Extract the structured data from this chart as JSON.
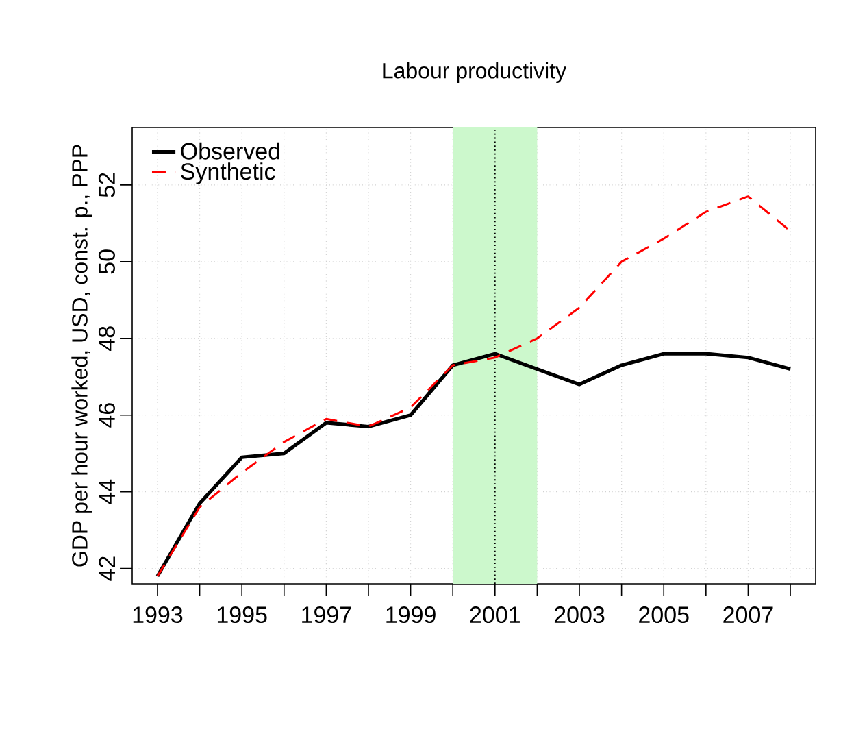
{
  "chart_data": {
    "type": "line",
    "title": "Labour productivity",
    "ylabel": "GDP per hour worked, USD, const. p., PPP",
    "x": [
      1993,
      1994,
      1995,
      1996,
      1997,
      1998,
      1999,
      2000,
      2001,
      2002,
      2003,
      2004,
      2005,
      2006,
      2007,
      2008
    ],
    "series": [
      {
        "name": "Observed",
        "color": "#000000",
        "line_style": "solid",
        "values": [
          41.8,
          43.7,
          44.9,
          45.0,
          45.8,
          45.7,
          46.0,
          47.3,
          47.6,
          47.2,
          46.8,
          47.3,
          47.6,
          47.6,
          47.5,
          47.2
        ]
      },
      {
        "name": "Synthetic",
        "color": "#ff0000",
        "line_style": "dashed",
        "values": [
          41.8,
          43.6,
          44.5,
          45.3,
          45.9,
          45.7,
          46.2,
          47.3,
          47.5,
          48.0,
          48.8,
          50.0,
          50.6,
          51.3,
          51.7,
          50.8
        ]
      }
    ],
    "xlim": [
      1992.4,
      2008.6
    ],
    "ylim": [
      41.6,
      53.5
    ],
    "xticks": [
      1993,
      {
        "value": 1994,
        "label": null
      },
      1995,
      {
        "value": 1996,
        "label": null
      },
      1997,
      {
        "value": 1998,
        "label": null
      },
      1999,
      {
        "value": 2000,
        "label": null
      },
      2001,
      {
        "value": 2002,
        "label": null
      },
      2003,
      {
        "value": 2004,
        "label": null
      },
      2005,
      {
        "value": 2006,
        "label": null
      },
      2007,
      {
        "value": 2008,
        "label": null
      }
    ],
    "yticks": [
      42,
      44,
      46,
      48,
      50,
      52
    ],
    "bands": [
      {
        "axis": "x",
        "from": 2000,
        "to": 2002,
        "color": "#ccf8cc"
      }
    ],
    "ref_lines": [
      {
        "axis": "x",
        "value": 2001,
        "color": "#000000",
        "line_style": "dotted"
      }
    ],
    "grid": true,
    "legend": "top left",
    "marker": "none"
  }
}
